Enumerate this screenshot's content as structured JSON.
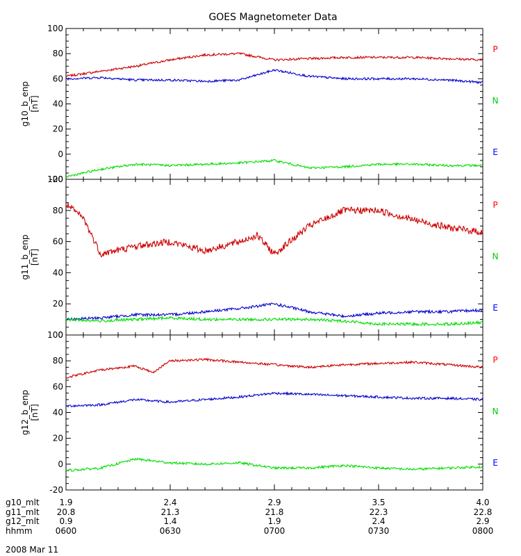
{
  "chart_data": {
    "type": "line",
    "title": "GOES Magnetometer Data",
    "date_label": "2008 Mar 11",
    "x_ticks": [
      "0600",
      "0630",
      "0700",
      "0730",
      "0800"
    ],
    "x_minor_ticks": [
      "0605",
      "0610",
      "0615",
      "0620",
      "0625",
      "0635",
      "0640",
      "0645",
      "0650",
      "0655",
      "0705",
      "0710",
      "0715",
      "0720",
      "0725",
      "0735",
      "0740",
      "0745",
      "0750",
      "0755"
    ],
    "x_range": [
      "0600",
      "0800"
    ],
    "legend": [
      {
        "label": "P",
        "color": "#ff0000"
      },
      {
        "label": "N",
        "color": "#00cc00"
      },
      {
        "label": "E",
        "color": "#0000ff"
      }
    ],
    "mlt_rows": [
      {
        "label": "g10_mlt",
        "values": [
          "1.9",
          "2.4",
          "2.9",
          "3.5",
          "4.0"
        ]
      },
      {
        "label": "g11_mlt",
        "values": [
          "20.8",
          "21.3",
          "21.8",
          "22.3",
          "22.8"
        ]
      },
      {
        "label": "g12_mlt",
        "values": [
          "0.9",
          "1.4",
          "1.9",
          "2.4",
          "2.9"
        ]
      },
      {
        "label": "hhmm",
        "values": [
          "0600",
          "0630",
          "0700",
          "0730",
          "0800"
        ]
      }
    ],
    "panels": [
      {
        "ylabel": "g10_b_enp",
        "unit": "[nT]",
        "ylim": [
          -20,
          100
        ],
        "yticks": [
          -20,
          0,
          20,
          40,
          60,
          80,
          100
        ],
        "series": [
          {
            "name": "P",
            "color": "#cc0000",
            "x": [
              "0600",
              "0610",
              "0620",
              "0630",
              "0640",
              "0650",
              "0700",
              "0710",
              "0720",
              "0730",
              "0740",
              "0750",
              "0800"
            ],
            "values": [
              62,
              66,
              70,
              75,
              79,
              80,
              75,
              76,
              77,
              77,
              77,
              76,
              75
            ]
          },
          {
            "name": "E",
            "color": "#0000cc",
            "x": [
              "0600",
              "0610",
              "0620",
              "0630",
              "0640",
              "0650",
              "0700",
              "0710",
              "0720",
              "0730",
              "0740",
              "0750",
              "0800"
            ],
            "values": [
              60,
              61,
              59,
              59,
              58,
              59,
              67,
              62,
              60,
              60,
              60,
              59,
              57
            ]
          },
          {
            "name": "N",
            "color": "#00dd00",
            "x": [
              "0600",
              "0610",
              "0620",
              "0630",
              "0640",
              "0650",
              "0700",
              "0710",
              "0720",
              "0730",
              "0740",
              "0750",
              "0800"
            ],
            "values": [
              -18,
              -12,
              -8,
              -9,
              -8,
              -7,
              -5,
              -11,
              -10,
              -8,
              -8,
              -9,
              -9
            ]
          }
        ]
      },
      {
        "ylabel": "g11_b_enp",
        "unit": "[nT]",
        "ylim": [
          0,
          100
        ],
        "yticks": [
          0,
          20,
          40,
          60,
          80,
          100
        ],
        "series": [
          {
            "name": "P",
            "color": "#cc0000",
            "x": [
              "0600",
              "0605",
              "0610",
              "0620",
              "0630",
              "0640",
              "0650",
              "0655",
              "0700",
              "0710",
              "0720",
              "0730",
              "0740",
              "0750",
              "0800"
            ],
            "values": [
              84,
              75,
              52,
              57,
              60,
              54,
              60,
              64,
              52,
              70,
              80,
              80,
              74,
              69,
              66
            ]
          },
          {
            "name": "E",
            "color": "#0000cc",
            "x": [
              "0600",
              "0610",
              "0620",
              "0630",
              "0640",
              "0650",
              "0700",
              "0710",
              "0720",
              "0730",
              "0740",
              "0750",
              "0800"
            ],
            "values": [
              10,
              11,
              13,
              13,
              15,
              17,
              20,
              15,
              12,
              14,
              15,
              15,
              16
            ]
          },
          {
            "name": "N",
            "color": "#00dd00",
            "x": [
              "0600",
              "0610",
              "0620",
              "0630",
              "0640",
              "0650",
              "0700",
              "0710",
              "0720",
              "0730",
              "0740",
              "0750",
              "0800"
            ],
            "values": [
              10,
              9,
              10,
              11,
              10,
              10,
              10,
              10,
              9,
              7,
              7,
              7,
              8
            ]
          }
        ]
      },
      {
        "ylabel": "g12_b_enp",
        "unit": "[nT]",
        "ylim": [
          -20,
          100
        ],
        "yticks": [
          -20,
          0,
          20,
          40,
          60,
          80,
          100
        ],
        "series": [
          {
            "name": "P",
            "color": "#cc0000",
            "x": [
              "0600",
              "0610",
              "0620",
              "0625",
              "0630",
              "0640",
              "0650",
              "0700",
              "0710",
              "0720",
              "0730",
              "0740",
              "0750",
              "0800"
            ],
            "values": [
              67,
              73,
              76,
              71,
              80,
              81,
              79,
              77,
              75,
              77,
              78,
              79,
              77,
              75
            ]
          },
          {
            "name": "E",
            "color": "#0000cc",
            "x": [
              "0600",
              "0610",
              "0620",
              "0630",
              "0640",
              "0650",
              "0700",
              "0710",
              "0720",
              "0730",
              "0740",
              "0750",
              "0800"
            ],
            "values": [
              45,
              46,
              50,
              48,
              50,
              52,
              55,
              54,
              53,
              52,
              51,
              51,
              50
            ]
          },
          {
            "name": "N",
            "color": "#00dd00",
            "x": [
              "0600",
              "0610",
              "0620",
              "0630",
              "0640",
              "0650",
              "0700",
              "0710",
              "0720",
              "0730",
              "0740",
              "0750",
              "0800"
            ],
            "values": [
              -5,
              -3,
              4,
              1,
              0,
              1,
              -3,
              -3,
              -1,
              -3,
              -4,
              -3,
              -2
            ]
          }
        ]
      }
    ]
  }
}
